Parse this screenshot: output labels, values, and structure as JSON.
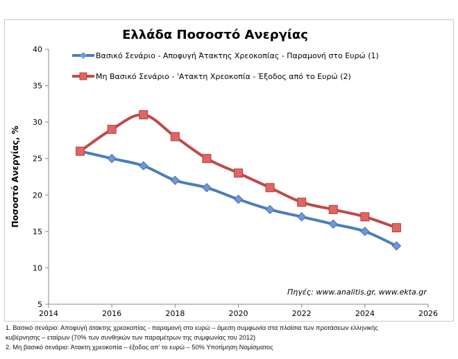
{
  "chart_data": {
    "type": "line",
    "title": "Ελλάδα Ποσοστό Ανεργίας",
    "ylabel": "Ποσοστό Ανεργίας, %",
    "xlabel": "",
    "xlim": [
      2014,
      2026
    ],
    "ylim": [
      5,
      40
    ],
    "xticks": [
      2014,
      2016,
      2018,
      2020,
      2022,
      2024,
      2026
    ],
    "yticks": [
      5,
      10,
      15,
      20,
      25,
      30,
      35,
      40
    ],
    "x": [
      2015,
      2016,
      2017,
      2018,
      2019,
      2020,
      2021,
      2022,
      2023,
      2024,
      2025
    ],
    "series": [
      {
        "name": "Βασικό Σενάριο - Αποφυγή Άτακτης Χρεοκοπίας - Παραμονή στο Ευρώ (1)",
        "color": "#4a7ebb",
        "marker": "diamond",
        "values": [
          26,
          25,
          24,
          22,
          21,
          19.4,
          18,
          17,
          16,
          15,
          13
        ]
      },
      {
        "name": "Μη Βασικό Σενάριο - 'Ατακτη Χρεοκοπία - Έξοδος από το Ευρώ (2)",
        "color": "#be4b48",
        "marker": "square",
        "values": [
          26,
          29,
          31,
          28,
          25,
          23,
          21,
          19,
          18,
          17,
          15.5
        ]
      }
    ],
    "legend": "top",
    "annotation": "Πηγές: www.analitis.gr,  www.ekta.gr"
  },
  "notes": [
    "1. Βασικό σενάριο: Αποφυγή άτακτης χρεοκοπίας - παραμονή στο ευρώ – άμεση συμφωνία  στα πλαίσια των προτάσεων ελληνικής",
    "κυβέρνησης – εταίρων (70% των συνθηκών  των παραμέτρων της συμφωνίας του 2012)",
    "2. Μη βασικό  σενάριο: Άτακτη χρεοκοπία – έξοδος απ’ το ευρώ – 50% Υποτίμηση Νομίσματος"
  ]
}
